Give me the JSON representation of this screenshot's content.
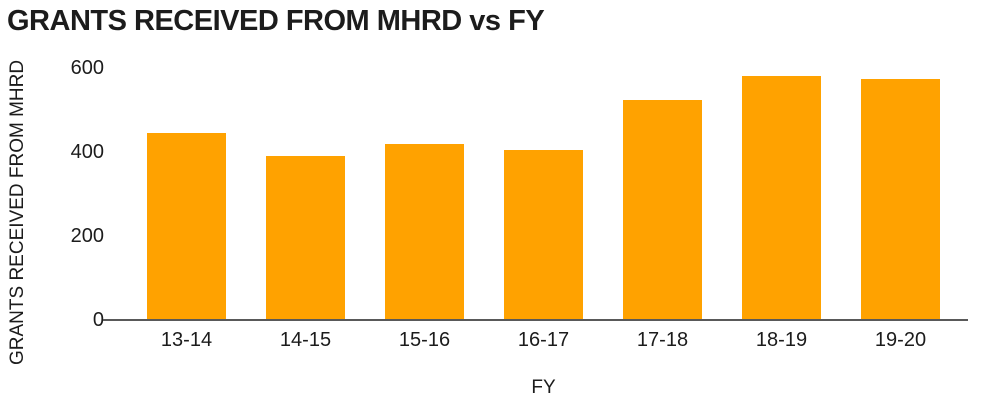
{
  "chart_data": {
    "type": "bar",
    "title": "GRANTS RECEIVED FROM MHRD vs FY",
    "xlabel": "FY",
    "ylabel": "GRANTS RECEIVED FROM MHRD",
    "categories": [
      "13-14",
      "14-15",
      "15-16",
      "16-17",
      "17-18",
      "18-19",
      "19-20"
    ],
    "values": [
      445,
      390,
      420,
      405,
      525,
      580,
      575
    ],
    "ylim": [
      0,
      600
    ],
    "yticks": [
      0,
      200,
      400,
      600
    ],
    "grid": false,
    "legend": "none",
    "bar_color": "#FFA200",
    "axis_color": "#595959",
    "text_color": "#1C1C1C",
    "background": "#FFFFFF"
  }
}
